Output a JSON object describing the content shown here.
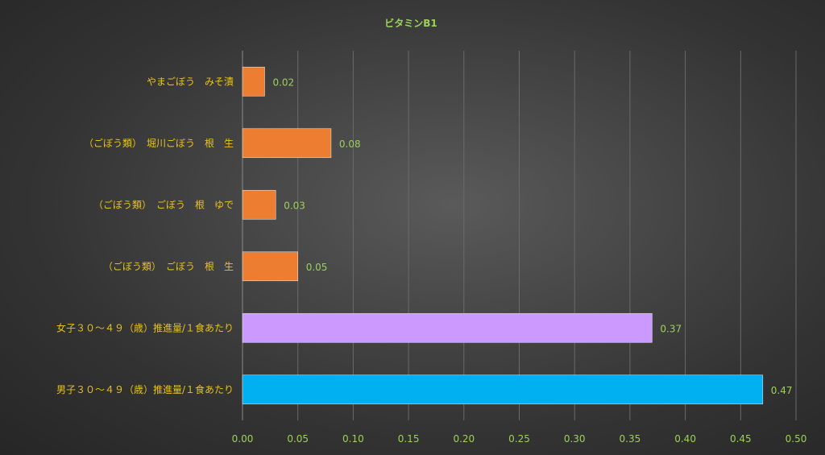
{
  "chart_data": {
    "type": "bar",
    "orientation": "horizontal",
    "title": "ビタミンB1",
    "xlabel": "",
    "ylabel": "",
    "xlim": [
      0,
      0.5
    ],
    "grid": true,
    "legend": "none",
    "ticks": [
      "0.00",
      "0.05",
      "0.10",
      "0.15",
      "0.20",
      "0.25",
      "0.30",
      "0.35",
      "0.40",
      "0.45",
      "0.50"
    ],
    "categories": [
      "やまごぼう　みそ漬",
      "（ごぼう類）　堀川ごぼう　根　生",
      "（ごぼう類）　ごぼう　根　ゆで",
      "（ごぼう類）　ごぼう　根　生",
      "女子３０～４９（歳）推進量/１食あたり",
      "男子３０～４９（歳）推進量/１食あたり"
    ],
    "values": [
      0.02,
      0.08,
      0.03,
      0.05,
      0.37,
      0.47
    ],
    "labels": [
      "0.02",
      "0.08",
      "0.03",
      "0.05",
      "0.37",
      "0.47"
    ],
    "colors": [
      "#ed7d31",
      "#ed7d31",
      "#ed7d31",
      "#ed7d31",
      "#cc99ff",
      "#00b0f0"
    ]
  }
}
